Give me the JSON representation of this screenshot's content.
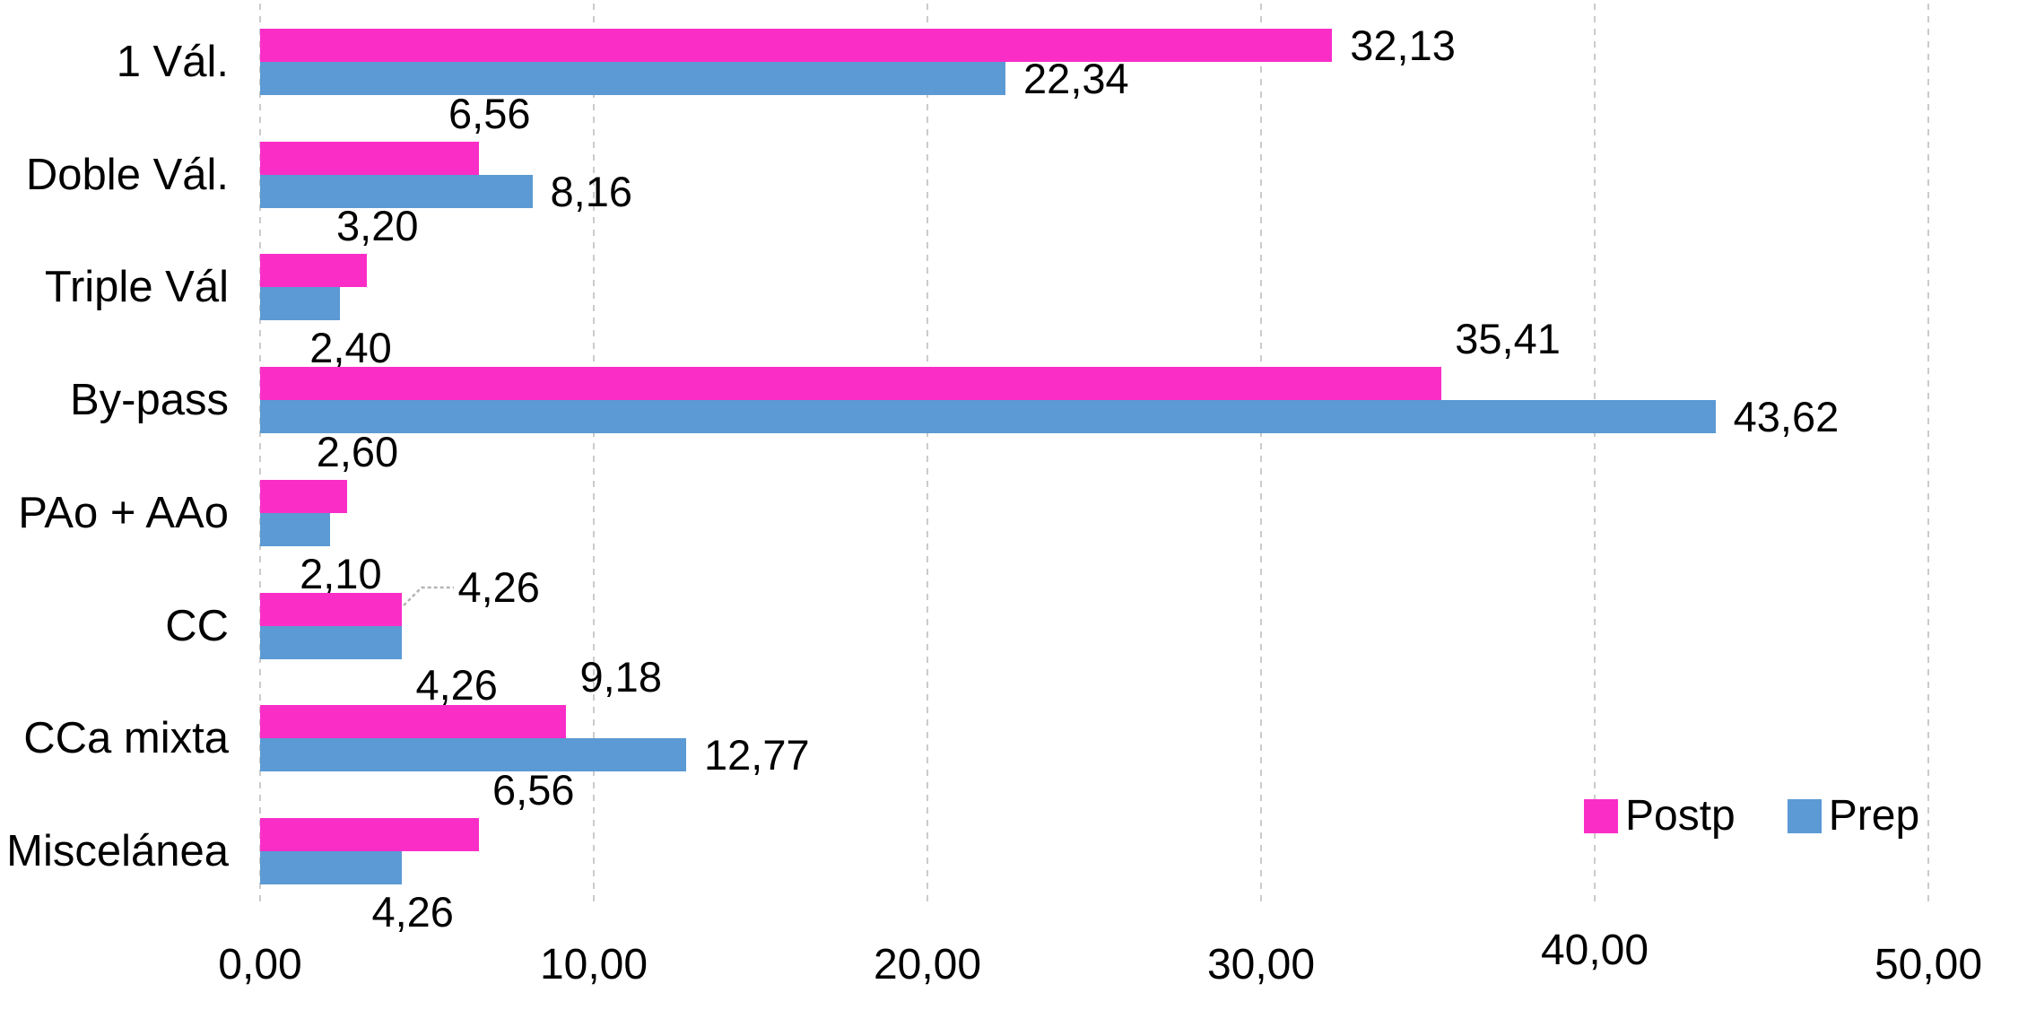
{
  "chart_data": {
    "type": "bar",
    "orientation": "horizontal",
    "title": "",
    "categories": [
      "1 Vál.",
      "Doble Vál.",
      "Triple Vál",
      "By-pass",
      "PAo + AAo",
      "CC",
      "CCa mixta",
      "Miscelánea"
    ],
    "series": [
      {
        "name": "Postp",
        "color": "#FA2EC7",
        "values": [
          32.13,
          6.56,
          3.2,
          35.41,
          2.6,
          4.26,
          9.18,
          6.56
        ],
        "labels": [
          "32,13",
          "6,56",
          "3,20",
          "35,41",
          "2,60",
          "4,26",
          "9,18",
          "6,56"
        ],
        "label_pos": [
          "right",
          "above",
          "above",
          "above-right",
          "above",
          "leader",
          "above-right",
          "above-right"
        ]
      },
      {
        "name": "Prep",
        "color": "#5B9AD4",
        "values": [
          22.34,
          8.16,
          2.4,
          43.62,
          2.1,
          4.26,
          12.77,
          4.26
        ],
        "labels": [
          "22,34",
          "8,16",
          "2,40",
          "43,62",
          "2,10",
          "4,26",
          "12,77",
          "4,26"
        ],
        "label_pos": [
          "right",
          "right",
          "below",
          "right",
          "below",
          "below-right",
          "right",
          "below"
        ]
      }
    ],
    "x_axis": {
      "min": 0,
      "max": 50,
      "tick_step": 10,
      "tick_labels": [
        "0,00",
        "10,00",
        "20,00",
        "30,00",
        "40,00",
        "50,00"
      ],
      "grid": "dashed-vertical"
    },
    "legend": {
      "position": "bottom-right",
      "entries": [
        "Postp",
        "Prep"
      ]
    },
    "colors": {
      "background": "#ffffff",
      "gridline": "#cbcbcb",
      "leader_line": "#b5b5b5",
      "text": "#000000"
    }
  }
}
